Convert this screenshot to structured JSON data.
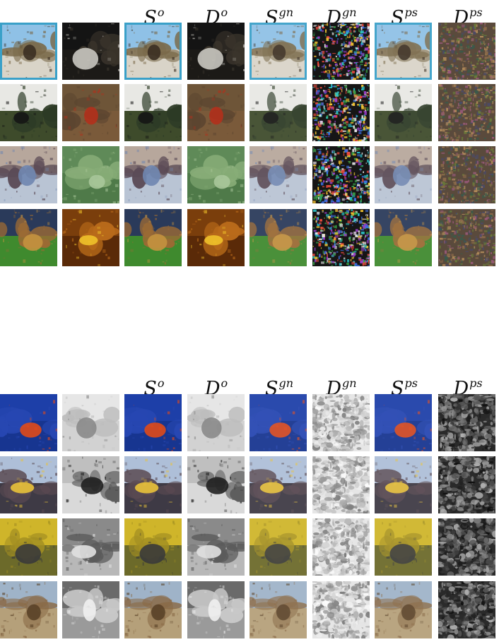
{
  "figure": {
    "panels": [
      {
        "id": "top",
        "column_headers": [
          {
            "base": "",
            "sup": ""
          },
          {
            "base": "",
            "sup": ""
          },
          {
            "base": "S",
            "sup": "o"
          },
          {
            "base": "D",
            "sup": "o"
          },
          {
            "base": "S",
            "sup": "gn"
          },
          {
            "base": "D",
            "sup": "gn"
          },
          {
            "base": "S",
            "sup": "ps"
          },
          {
            "base": "D",
            "sup": "ps"
          }
        ],
        "rows": [
          {
            "secret": "elephant-road-scene",
            "cover": "dark-room-interior"
          },
          {
            "secret": "building-balcony-trees",
            "cover": "red-insects-on-brown"
          },
          {
            "secret": "dog-and-fish-closeup",
            "cover": "broccoli"
          },
          {
            "secret": "dog-on-grass",
            "cover": "banana-on-wood"
          }
        ]
      },
      {
        "id": "bottom",
        "column_headers": [
          {
            "base": "",
            "sup": ""
          },
          {
            "base": "",
            "sup": ""
          },
          {
            "base": "S",
            "sup": "o"
          },
          {
            "base": "D",
            "sup": "o"
          },
          {
            "base": "S",
            "sup": "gn"
          },
          {
            "base": "D",
            "sup": "gn"
          },
          {
            "base": "S",
            "sup": "ps"
          },
          {
            "base": "D",
            "sup": "ps"
          }
        ],
        "rows": [
          {
            "secret": "clownfish-blue-water",
            "cover": "grayscale-sketch"
          },
          {
            "secret": "ship-on-sea",
            "cover": "grayscale-street-crowd"
          },
          {
            "secret": "bird-on-branch-yellow",
            "cover": "grayscale-bicycle"
          },
          {
            "secret": "stone-arch-ruins",
            "cover": "grayscale-church-interior"
          }
        ]
      }
    ]
  },
  "colors": {
    "background": "#ffffff",
    "header_text": "#111111",
    "noise_dark": "#1a1a1a",
    "noise_light": "#f2f2f2"
  }
}
